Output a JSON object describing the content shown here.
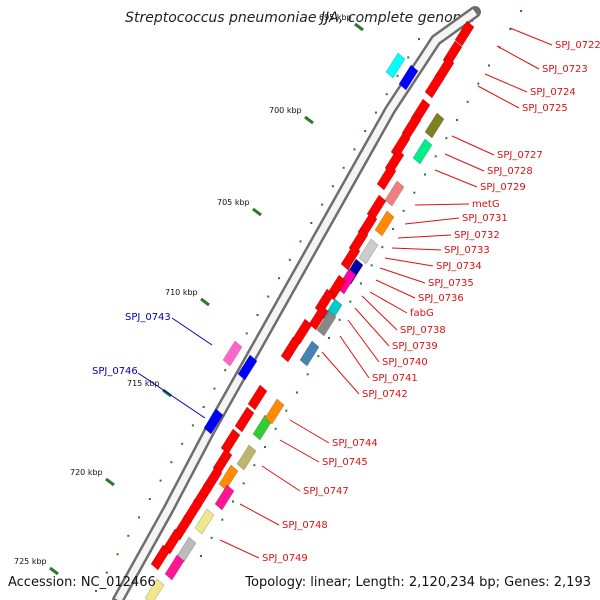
{
  "title": "Streptococcus pneumoniae JJA, complete genome",
  "footer": {
    "accession": "Accession: NC_012466",
    "summary": "Topology: linear; Length: 2,120,234 bp; Genes: 2,193"
  },
  "ticks": [
    "695 kbp",
    "700 kbp",
    "705 kbp",
    "710 kbp",
    "715 kbp",
    "720 kbp",
    "725 kbp"
  ],
  "label_colors": {
    "forward": "#dd1111",
    "reverse": "#0000bb"
  },
  "forward_labels": [
    "SPJ_0722",
    "SPJ_0723",
    "SPJ_0724",
    "SPJ_0725",
    "SPJ_0727",
    "SPJ_0728",
    "SPJ_0729",
    "metG",
    "SPJ_0731",
    "SPJ_0732",
    "SPJ_0733",
    "SPJ_0734",
    "SPJ_0735",
    "SPJ_0736",
    "fabG",
    "SPJ_0738",
    "SPJ_0739",
    "SPJ_0740",
    "SPJ_0741",
    "SPJ_0742",
    "SPJ_0744",
    "SPJ_0745",
    "SPJ_0747",
    "SPJ_0748",
    "SPJ_0749"
  ],
  "reverse_labels": [
    "SPJ_0743",
    "SPJ_0746"
  ]
}
